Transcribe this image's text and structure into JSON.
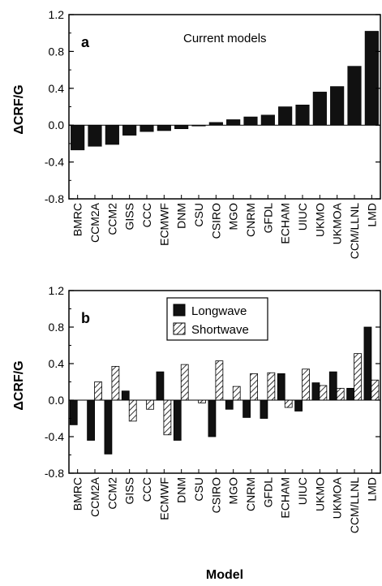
{
  "figure": {
    "xlabel": "Model"
  },
  "chart_data": [
    {
      "type": "bar",
      "panel_label": "a",
      "annotation": "Current models",
      "ylabel": "ΔCRF/G",
      "ylim": [
        -0.8,
        1.2
      ],
      "yticks": [
        "1.2",
        "0.8",
        "0.4",
        "0.0",
        "-0.4",
        "-0.8"
      ],
      "ytick_values": [
        1.2,
        0.8,
        0.4,
        0.0,
        -0.4,
        -0.8
      ],
      "categories": [
        "BMRC",
        "CCM2A",
        "CCM2",
        "GISS",
        "CCC",
        "ECMWF",
        "DNM",
        "CSU",
        "CSIRO",
        "MGO",
        "CNRM",
        "GFDL",
        "ECHAM",
        "UIUC",
        "UKMO",
        "UKMOA",
        "CCM/LLNL",
        "LMD"
      ],
      "values": [
        -0.27,
        -0.23,
        -0.21,
        -0.11,
        -0.07,
        -0.06,
        -0.04,
        -0.01,
        0.03,
        0.06,
        0.09,
        0.11,
        0.2,
        0.22,
        0.36,
        0.42,
        0.64,
        1.02
      ],
      "color": "#111111",
      "grid": false
    },
    {
      "type": "bar",
      "panel_label": "b",
      "ylabel": "ΔCRF/G",
      "ylim": [
        -0.8,
        1.2
      ],
      "yticks": [
        "1.2",
        "0.8",
        "0.4",
        "0.0",
        "-0.4",
        "-0.8"
      ],
      "ytick_values": [
        1.2,
        0.8,
        0.4,
        0.0,
        -0.4,
        -0.8
      ],
      "categories": [
        "BMRC",
        "CCM2A",
        "CCM2",
        "GISS",
        "CCC",
        "ECMWF",
        "DNM",
        "CSU",
        "CSIRO",
        "MGO",
        "CNRM",
        "GFDL",
        "ECHAM",
        "UIUC",
        "UKMO",
        "UKMOA",
        "CCM/LLNL",
        "LMD"
      ],
      "series": [
        {
          "name": "Longwave",
          "values": [
            -0.27,
            -0.44,
            -0.59,
            0.1,
            0.0,
            0.31,
            -0.44,
            0.0,
            -0.4,
            -0.1,
            -0.19,
            -0.2,
            0.29,
            -0.12,
            0.19,
            0.31,
            0.13,
            0.8
          ],
          "fill": "#111111"
        },
        {
          "name": "Shortwave",
          "values": [
            0.0,
            0.2,
            0.37,
            -0.23,
            -0.1,
            -0.38,
            0.39,
            -0.03,
            0.43,
            0.15,
            0.29,
            0.3,
            -0.08,
            0.34,
            0.16,
            0.13,
            0.51,
            0.22
          ],
          "fill": "hatched"
        }
      ],
      "legend_position": "top-center",
      "grid": false
    }
  ]
}
